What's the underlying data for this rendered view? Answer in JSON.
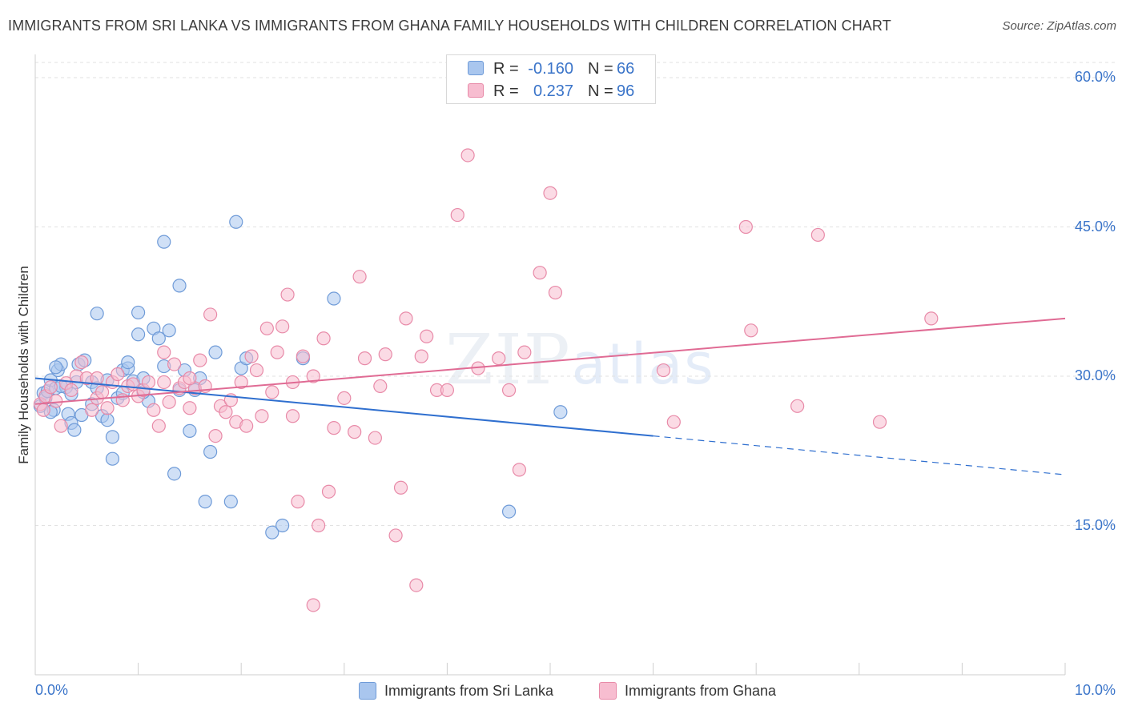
{
  "header": {
    "title": "IMMIGRANTS FROM SRI LANKA VS IMMIGRANTS FROM GHANA FAMILY HOUSEHOLDS WITH CHILDREN CORRELATION CHART",
    "source": "Source: ZipAtlas.com"
  },
  "watermark": {
    "zip": "ZIP",
    "atlas": "atlas"
  },
  "legend_top": {
    "rows": [
      {
        "r_label": "R =",
        "r_value": "-0.160",
        "n_label": "N =",
        "n_value": "66",
        "color": "#a9c6ee",
        "border": "#6f9bd8"
      },
      {
        "r_label": "R =",
        "r_value": "0.237",
        "n_label": "N =",
        "n_value": "96",
        "color": "#f7bdd0",
        "border": "#e88aa8"
      }
    ]
  },
  "legend_bottom": [
    {
      "label": "Immigrants from Sri Lanka",
      "color": "#a9c6ee",
      "border": "#6f9bd8"
    },
    {
      "label": "Immigrants from Ghana",
      "color": "#f7bdd0",
      "border": "#e88aa8"
    }
  ],
  "chart_data": {
    "type": "scatter",
    "title": "IMMIGRANTS FROM SRI LANKA VS IMMIGRANTS FROM GHANA FAMILY HOUSEHOLDS WITH CHILDREN CORRELATION CHART",
    "xlabel": "",
    "ylabel": "Family Households with Children",
    "xlim": [
      0,
      10
    ],
    "ylim": [
      0,
      60
    ],
    "x_tick_labels": [
      "0.0%",
      "10.0%"
    ],
    "y_ticks": [
      15,
      30,
      45,
      60
    ],
    "y_tick_labels": [
      "15.0%",
      "30.0%",
      "45.0%",
      "60.0%"
    ],
    "grid": true,
    "series": [
      {
        "name": "Immigrants from Sri Lanka",
        "color": "#6f9bd8",
        "fill": "#a9c6ee",
        "trend_color": "#2f6fcf",
        "trend": {
          "x0": 0,
          "y0": 29.8,
          "x1": 6.0,
          "y1": 24.0,
          "dashed_to_x": 10.0,
          "dashed_to_y": 20.1
        },
        "points": [
          [
            0.05,
            27.0
          ],
          [
            0.08,
            28.3
          ],
          [
            0.1,
            27.8
          ],
          [
            0.12,
            28.5
          ],
          [
            0.15,
            29.6
          ],
          [
            0.18,
            26.6
          ],
          [
            0.2,
            28.8
          ],
          [
            0.22,
            30.6
          ],
          [
            0.25,
            31.2
          ],
          [
            0.3,
            28.9
          ],
          [
            0.32,
            26.2
          ],
          [
            0.35,
            25.3
          ],
          [
            0.38,
            24.6
          ],
          [
            0.42,
            31.2
          ],
          [
            0.48,
            31.6
          ],
          [
            0.55,
            29.4
          ],
          [
            0.6,
            28.8
          ],
          [
            0.65,
            26.0
          ],
          [
            0.7,
            29.6
          ],
          [
            0.75,
            23.9
          ],
          [
            0.8,
            27.8
          ],
          [
            0.85,
            30.6
          ],
          [
            0.9,
            30.8
          ],
          [
            0.95,
            29.5
          ],
          [
            1.0,
            34.2
          ],
          [
            1.05,
            29.8
          ],
          [
            1.1,
            27.5
          ],
          [
            1.15,
            34.8
          ],
          [
            1.2,
            33.8
          ],
          [
            1.25,
            31.0
          ],
          [
            1.3,
            34.6
          ],
          [
            1.35,
            20.2
          ],
          [
            1.4,
            28.6
          ],
          [
            1.45,
            30.6
          ],
          [
            1.5,
            24.5
          ],
          [
            1.55,
            28.6
          ],
          [
            1.6,
            29.8
          ],
          [
            1.65,
            17.4
          ],
          [
            1.7,
            22.4
          ],
          [
            1.75,
            32.4
          ],
          [
            1.9,
            17.4
          ],
          [
            1.95,
            45.5
          ],
          [
            2.0,
            30.8
          ],
          [
            2.05,
            31.8
          ],
          [
            2.3,
            14.3
          ],
          [
            2.4,
            15.0
          ],
          [
            2.6,
            31.8
          ],
          [
            2.9,
            37.8
          ],
          [
            4.6,
            16.4
          ],
          [
            5.1,
            26.4
          ],
          [
            0.25,
            29.0
          ],
          [
            0.4,
            29.4
          ],
          [
            0.6,
            36.3
          ],
          [
            0.7,
            25.6
          ],
          [
            0.75,
            21.7
          ],
          [
            0.9,
            31.4
          ],
          [
            1.0,
            36.4
          ],
          [
            1.25,
            43.5
          ],
          [
            1.4,
            39.1
          ],
          [
            0.15,
            26.4
          ],
          [
            0.2,
            30.9
          ],
          [
            0.55,
            27.2
          ],
          [
            0.45,
            26.1
          ],
          [
            0.35,
            28.2
          ],
          [
            0.85,
            28.3
          ],
          [
            1.05,
            28.4
          ]
        ]
      },
      {
        "name": "Immigrants from Ghana",
        "color": "#e88aa8",
        "fill": "#f7bdd0",
        "trend_color": "#e06b94",
        "trend": {
          "x0": 0,
          "y0": 27.2,
          "x1": 10.0,
          "y1": 35.8
        },
        "points": [
          [
            0.05,
            27.2
          ],
          [
            0.08,
            26.6
          ],
          [
            0.1,
            28.0
          ],
          [
            0.15,
            28.9
          ],
          [
            0.2,
            27.5
          ],
          [
            0.25,
            25.0
          ],
          [
            0.3,
            29.3
          ],
          [
            0.35,
            28.6
          ],
          [
            0.4,
            30.0
          ],
          [
            0.45,
            31.4
          ],
          [
            0.5,
            29.8
          ],
          [
            0.55,
            26.6
          ],
          [
            0.6,
            27.8
          ],
          [
            0.65,
            28.4
          ],
          [
            0.7,
            26.8
          ],
          [
            0.75,
            29.4
          ],
          [
            0.8,
            30.2
          ],
          [
            0.85,
            27.6
          ],
          [
            0.9,
            29.0
          ],
          [
            0.95,
            29.2
          ],
          [
            1.0,
            28.0
          ],
          [
            1.05,
            28.6
          ],
          [
            1.1,
            29.4
          ],
          [
            1.15,
            26.6
          ],
          [
            1.2,
            25.0
          ],
          [
            1.25,
            29.4
          ],
          [
            1.3,
            27.4
          ],
          [
            1.35,
            31.2
          ],
          [
            1.4,
            28.8
          ],
          [
            1.45,
            29.4
          ],
          [
            1.5,
            26.8
          ],
          [
            1.55,
            28.8
          ],
          [
            1.6,
            31.6
          ],
          [
            1.65,
            29.0
          ],
          [
            1.7,
            36.2
          ],
          [
            1.75,
            24.0
          ],
          [
            1.8,
            27.0
          ],
          [
            1.85,
            26.4
          ],
          [
            1.9,
            27.6
          ],
          [
            1.95,
            25.4
          ],
          [
            2.0,
            29.4
          ],
          [
            2.05,
            25.0
          ],
          [
            2.1,
            32.0
          ],
          [
            2.15,
            30.6
          ],
          [
            2.2,
            26.0
          ],
          [
            2.25,
            34.8
          ],
          [
            2.3,
            28.4
          ],
          [
            2.35,
            32.4
          ],
          [
            2.4,
            35.0
          ],
          [
            2.45,
            38.2
          ],
          [
            2.5,
            29.4
          ],
          [
            2.55,
            17.4
          ],
          [
            2.6,
            32.0
          ],
          [
            2.7,
            30.0
          ],
          [
            2.75,
            15.0
          ],
          [
            2.8,
            33.8
          ],
          [
            2.85,
            18.4
          ],
          [
            2.9,
            24.8
          ],
          [
            3.0,
            27.8
          ],
          [
            3.1,
            24.4
          ],
          [
            3.15,
            40.0
          ],
          [
            3.2,
            31.8
          ],
          [
            3.3,
            23.8
          ],
          [
            3.35,
            29.0
          ],
          [
            3.4,
            32.2
          ],
          [
            3.5,
            14.0
          ],
          [
            3.55,
            18.8
          ],
          [
            3.6,
            35.8
          ],
          [
            3.7,
            9.0
          ],
          [
            3.75,
            32.0
          ],
          [
            3.8,
            34.0
          ],
          [
            3.9,
            28.6
          ],
          [
            4.0,
            28.6
          ],
          [
            4.1,
            46.2
          ],
          [
            4.2,
            52.2
          ],
          [
            4.3,
            30.8
          ],
          [
            4.5,
            31.8
          ],
          [
            4.6,
            28.6
          ],
          [
            4.7,
            20.6
          ],
          [
            4.75,
            32.4
          ],
          [
            4.9,
            40.4
          ],
          [
            5.0,
            48.4
          ],
          [
            5.05,
            38.4
          ],
          [
            6.1,
            30.6
          ],
          [
            6.2,
            25.4
          ],
          [
            6.9,
            45.0
          ],
          [
            6.95,
            34.6
          ],
          [
            7.4,
            27.0
          ],
          [
            7.6,
            44.2
          ],
          [
            8.2,
            25.4
          ],
          [
            8.7,
            35.8
          ],
          [
            1.5,
            29.8
          ],
          [
            0.6,
            29.8
          ],
          [
            2.7,
            7.0
          ],
          [
            1.25,
            32.4
          ],
          [
            2.5,
            26.0
          ]
        ]
      }
    ]
  }
}
